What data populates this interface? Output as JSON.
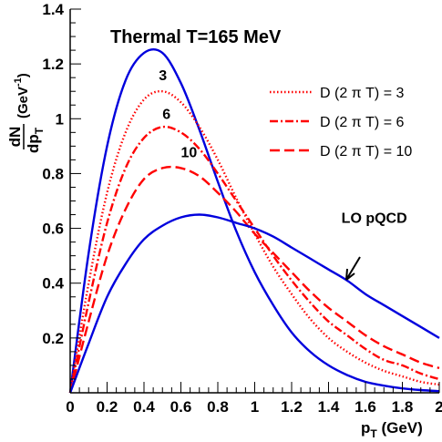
{
  "chart_data": {
    "type": "line",
    "title": "Thermal T=165 MeV",
    "xlabel": {
      "main": "p",
      "sub": "T",
      "unit": " (GeV)"
    },
    "ylabel": {
      "num": "dN",
      "den_main": "dp",
      "den_sub": "T",
      "unit_main": " (GeV",
      "unit_sup": "-1",
      "unit_close": ")"
    },
    "xlim": [
      0,
      2
    ],
    "ylim": [
      0,
      1.4
    ],
    "xticks": [
      "0",
      "0.2",
      "0.4",
      "0.6",
      "0.8",
      "1",
      "1.2",
      "1.4",
      "1.6",
      "1.8",
      "2"
    ],
    "yticks": [
      "0.2",
      "0.4",
      "0.6",
      "0.8",
      "1",
      "1.2",
      "1.4"
    ],
    "grid": false,
    "legend_position": "top-right",
    "x": [
      0,
      0.1,
      0.2,
      0.3,
      0.4,
      0.5,
      0.6,
      0.7,
      0.8,
      0.9,
      1.0,
      1.1,
      1.2,
      1.3,
      1.4,
      1.5,
      1.6,
      1.7,
      1.8,
      1.9,
      2.0
    ],
    "series": [
      {
        "values": [
          0,
          0.51,
          0.9,
          1.14,
          1.24,
          1.24,
          1.13,
          0.96,
          0.77,
          0.59,
          0.44,
          0.32,
          0.22,
          0.15,
          0.1,
          0.065,
          0.04,
          0.026,
          0.016,
          0.01,
          0.006
        ],
        "color": "#0000dd",
        "dash": "solid"
      },
      {
        "name": "D (2 π T) = 3",
        "values": [
          0,
          0.4,
          0.73,
          0.95,
          1.07,
          1.1,
          1.06,
          0.97,
          0.85,
          0.71,
          0.58,
          0.46,
          0.36,
          0.27,
          0.2,
          0.15,
          0.11,
          0.08,
          0.06,
          0.04,
          0.03
        ],
        "color": "#ff0000",
        "dash": "dotted"
      },
      {
        "name": "D (2 π T) = 6",
        "values": [
          0,
          0.33,
          0.62,
          0.82,
          0.93,
          0.97,
          0.95,
          0.89,
          0.8,
          0.7,
          0.6,
          0.5,
          0.41,
          0.33,
          0.26,
          0.21,
          0.16,
          0.12,
          0.1,
          0.07,
          0.05
        ],
        "color": "#ff0000",
        "dash": "dashdot"
      },
      {
        "name": "D (2 π T) = 10",
        "values": [
          0,
          0.26,
          0.5,
          0.67,
          0.78,
          0.82,
          0.82,
          0.79,
          0.73,
          0.66,
          0.58,
          0.51,
          0.44,
          0.37,
          0.31,
          0.26,
          0.21,
          0.17,
          0.14,
          0.11,
          0.09
        ],
        "color": "#ff0000",
        "dash": "dashed"
      },
      {
        "values": [
          0,
          0.18,
          0.35,
          0.47,
          0.56,
          0.61,
          0.64,
          0.65,
          0.64,
          0.62,
          0.6,
          0.57,
          0.53,
          0.49,
          0.45,
          0.41,
          0.36,
          0.32,
          0.28,
          0.24,
          0.2
        ],
        "color": "#0000dd",
        "dash": "solid"
      }
    ],
    "annotations": [
      {
        "text": "3",
        "x": 0.48,
        "y": 1.14
      },
      {
        "text": "6",
        "x": 0.5,
        "y": 1.0
      },
      {
        "text": "10",
        "x": 0.6,
        "y": 0.86
      },
      {
        "text": "LO pQCD",
        "x": 1.47,
        "y": 0.62
      }
    ]
  }
}
